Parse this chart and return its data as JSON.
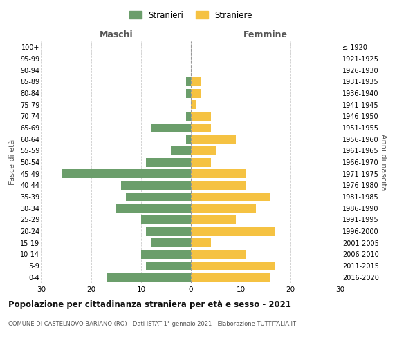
{
  "age_groups": [
    "0-4",
    "5-9",
    "10-14",
    "15-19",
    "20-24",
    "25-29",
    "30-34",
    "35-39",
    "40-44",
    "45-49",
    "50-54",
    "55-59",
    "60-64",
    "65-69",
    "70-74",
    "75-79",
    "80-84",
    "85-89",
    "90-94",
    "95-99",
    "100+"
  ],
  "birth_years": [
    "2016-2020",
    "2011-2015",
    "2006-2010",
    "2001-2005",
    "1996-2000",
    "1991-1995",
    "1986-1990",
    "1981-1985",
    "1976-1980",
    "1971-1975",
    "1966-1970",
    "1961-1965",
    "1956-1960",
    "1951-1955",
    "1946-1950",
    "1941-1945",
    "1936-1940",
    "1931-1935",
    "1926-1930",
    "1921-1925",
    "≤ 1920"
  ],
  "maschi": [
    17,
    9,
    10,
    8,
    9,
    10,
    15,
    13,
    14,
    26,
    9,
    4,
    1,
    8,
    1,
    0,
    1,
    1,
    0,
    0,
    0
  ],
  "femmine": [
    16,
    17,
    11,
    4,
    17,
    9,
    13,
    16,
    11,
    11,
    4,
    5,
    9,
    4,
    4,
    1,
    2,
    2,
    0,
    0,
    0
  ],
  "color_maschi": "#6b9e6b",
  "color_femmine": "#f5c242",
  "title": "Popolazione per cittadinanza straniera per età e sesso - 2021",
  "subtitle": "COMUNE DI CASTELNOVO BARIANO (RO) - Dati ISTAT 1° gennaio 2021 - Elaborazione TUTTITALIA.IT",
  "xlabel_left": "Maschi",
  "xlabel_right": "Femmine",
  "ylabel_left": "Fasce di età",
  "ylabel_right": "Anni di nascita",
  "xlim": 30,
  "legend_stranieri": "Stranieri",
  "legend_straniere": "Straniere",
  "background_color": "#ffffff",
  "grid_color": "#cccccc"
}
